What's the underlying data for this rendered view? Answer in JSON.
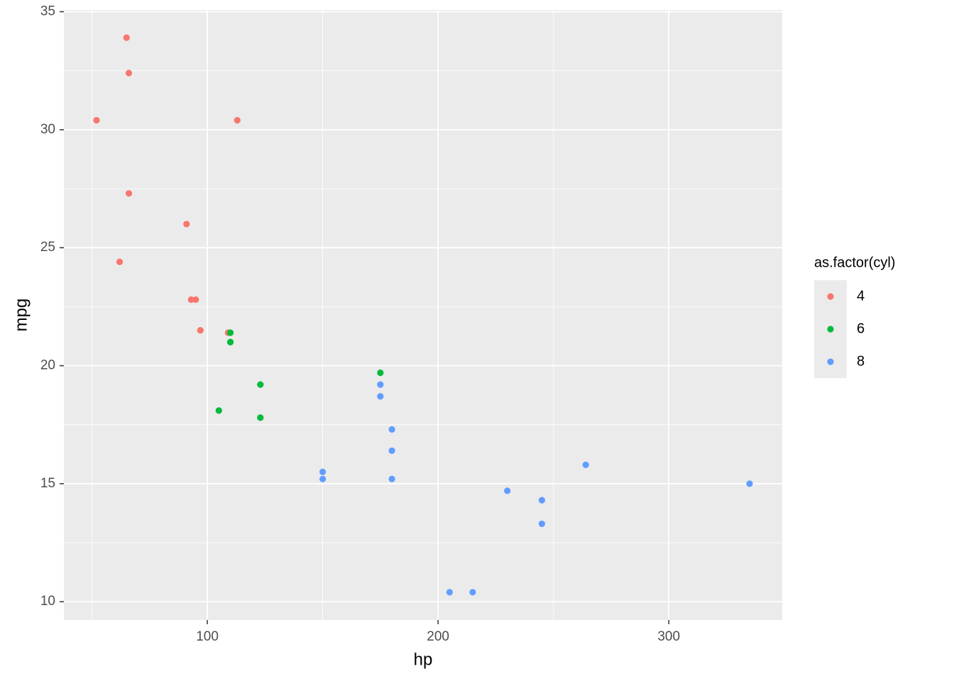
{
  "chart_data": {
    "type": "scatter",
    "x_label": "hp",
    "y_label": "mpg",
    "xlim": [
      37.85,
      349.15
    ],
    "ylim": [
      9.225,
      35.075
    ],
    "xticks": [
      100,
      200,
      300
    ],
    "yticks": [
      10,
      15,
      20,
      25,
      30,
      35
    ],
    "x_minor_ticks": [
      50,
      150,
      250
    ],
    "y_minor_ticks": [
      12.5,
      17.5,
      22.5,
      27.5,
      32.5
    ],
    "grid": true,
    "panel_color": "#ebebeb",
    "legend_title": "as.factor(cyl)",
    "legend_position": "right",
    "series": [
      {
        "name": "4",
        "color": "#F8766D",
        "x": [
          93,
          62,
          95,
          66,
          52,
          65,
          97,
          66,
          91,
          113,
          109
        ],
        "values": [
          22.8,
          24.4,
          22.8,
          32.4,
          30.4,
          33.9,
          21.5,
          27.3,
          26.0,
          30.4,
          21.4
        ]
      },
      {
        "name": "6",
        "color": "#00BA38",
        "x": [
          110,
          110,
          110,
          105,
          123,
          123,
          175
        ],
        "values": [
          21.0,
          21.0,
          21.4,
          18.1,
          19.2,
          17.8,
          19.7
        ]
      },
      {
        "name": "8",
        "color": "#619CFF",
        "x": [
          175,
          245,
          180,
          180,
          180,
          205,
          215,
          230,
          150,
          150,
          245,
          175,
          264,
          335
        ],
        "values": [
          18.7,
          14.3,
          16.4,
          17.3,
          15.2,
          10.4,
          10.4,
          14.7,
          15.5,
          15.2,
          13.3,
          19.2,
          15.8,
          15.0
        ]
      }
    ]
  }
}
